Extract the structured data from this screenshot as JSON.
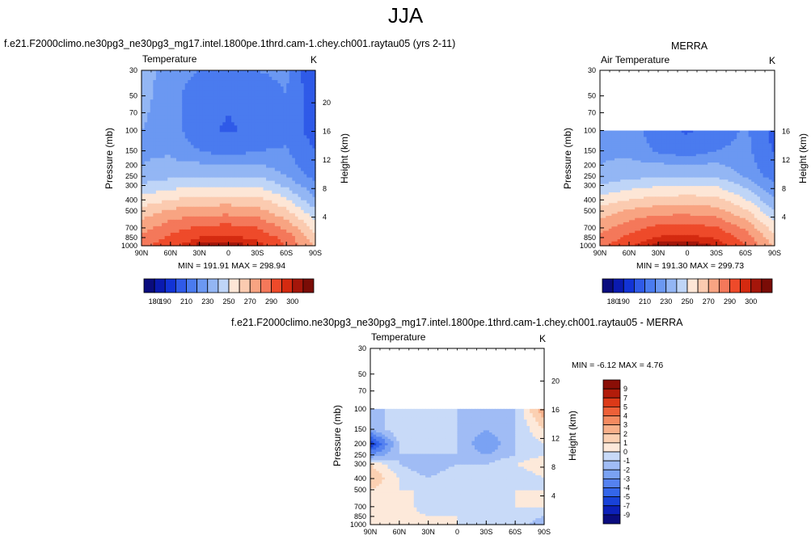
{
  "page": {
    "title": "JJA"
  },
  "colors": {
    "temp_palette": [
      "#0a0c7e",
      "#0a1ab0",
      "#1233d6",
      "#2f5ae8",
      "#4a7bef",
      "#6b98f2",
      "#93b6f4",
      "#bfd5f7",
      "#fde6d6",
      "#fbcbb0",
      "#f8a482",
      "#f4785a",
      "#ee4a2a",
      "#d42a10",
      "#a5160a",
      "#7a0c06"
    ],
    "diff_palette": [
      "#0a0c7e",
      "#0c20b8",
      "#1842d8",
      "#3466ea",
      "#5582f0",
      "#7aa2f3",
      "#a0bcf5",
      "#c8daf8",
      "#fde9da",
      "#fbd0b2",
      "#f8b08a",
      "#f48a60",
      "#ee6038",
      "#dc3a18",
      "#b21c0a",
      "#8a0e06"
    ]
  },
  "panels": [
    {
      "id": "model",
      "case_title": "f.e21.F2000climo.ne30pg3_ne30pg3_mg17.intel.1800pe.1thrd.cam-1.chey.ch001.raytau05 (yrs 2-11)",
      "left_label": "Temperature",
      "right_label": "K",
      "ylabel": "Pressure (mb)",
      "y2label": "Height (km)",
      "y_ticks": [
        "30",
        "50",
        "70",
        "100",
        "150",
        "200",
        "250",
        "300",
        "400",
        "500",
        "700",
        "850",
        "1000"
      ],
      "y2_ticks": [
        "20",
        "16",
        "12",
        "8",
        "4"
      ],
      "x_ticks": [
        "90N",
        "60N",
        "30N",
        "0",
        "30S",
        "60S",
        "90S"
      ],
      "minmax": "MIN = 191.91   MAX = 298.94"
    },
    {
      "id": "merra",
      "case_title": "MERRA",
      "left_label": "Air Temperature",
      "right_label": "K",
      "ylabel": "Pressure (mb)",
      "y2label": "Height (km)",
      "y_ticks": [
        "30",
        "50",
        "70",
        "100",
        "150",
        "200",
        "250",
        "300",
        "400",
        "500",
        "700",
        "850",
        "1000"
      ],
      "y2_ticks": [
        "16",
        "12",
        "8",
        "4"
      ],
      "x_ticks": [
        "90N",
        "60N",
        "30N",
        "0",
        "30S",
        "60S",
        "90S"
      ],
      "minmax": "MIN = 191.30   MAX = 299.73"
    },
    {
      "id": "diff",
      "case_title": "f.e21.F2000climo.ne30pg3_ne30pg3_mg17.intel.1800pe.1thrd.cam-1.chey.ch001.raytau05 - MERRA",
      "left_label": "Temperature",
      "right_label": "K",
      "ylabel": "Pressure (mb)",
      "y2label": "Height (km)",
      "y_ticks": [
        "30",
        "50",
        "70",
        "100",
        "150",
        "200",
        "250",
        "300",
        "400",
        "500",
        "700",
        "850",
        "1000"
      ],
      "y2_ticks": [
        "20",
        "16",
        "12",
        "8",
        "4"
      ],
      "x_ticks": [
        "90N",
        "60N",
        "30N",
        "0",
        "30S",
        "60S",
        "90S"
      ],
      "minmax": "MIN =  -6.12   MAX =   4.76"
    }
  ],
  "colorbars": {
    "temp_labels": [
      "180",
      "190",
      "210",
      "230",
      "250",
      "270",
      "290",
      "300"
    ],
    "diff_labels": [
      "9",
      "7",
      "5",
      "4",
      "3",
      "2",
      "1",
      "0",
      "-1",
      "-2",
      "-3",
      "-4",
      "-5",
      "-7",
      "-9"
    ]
  },
  "chart_data": [
    {
      "type": "heatmap",
      "title": "Temperature",
      "units": "K",
      "x": [
        "90N",
        "60N",
        "30N",
        "0",
        "30S",
        "60S",
        "90S"
      ],
      "y": [
        30,
        50,
        70,
        100,
        150,
        200,
        250,
        300,
        400,
        500,
        700,
        850,
        1000
      ],
      "ylabel": "Pressure (mb)",
      "y2label": "Height (km)",
      "min": 191.91,
      "max": 298.94,
      "values": [
        [
          226,
          214,
          210,
          208,
          210,
          212,
          190
        ],
        [
          224,
          213,
          205,
          202,
          205,
          210,
          192
        ],
        [
          222,
          214,
          203,
          200,
          203,
          209,
          194
        ],
        [
          220,
          215,
          202,
          199,
          202,
          207,
          195
        ],
        [
          219,
          219,
          210,
          205,
          210,
          211,
          200
        ],
        [
          220,
          222,
          222,
          220,
          222,
          214,
          203
        ],
        [
          224,
          228,
          230,
          229,
          230,
          220,
          206
        ],
        [
          232,
          236,
          239,
          239,
          239,
          228,
          212
        ],
        [
          244,
          250,
          254,
          255,
          254,
          242,
          222
        ],
        [
          254,
          262,
          266,
          266,
          264,
          252,
          232
        ],
        [
          266,
          276,
          282,
          284,
          280,
          268,
          246
        ],
        [
          272,
          282,
          290,
          292,
          288,
          276,
          254
        ],
        [
          276,
          288,
          297,
          298,
          294,
          280,
          258
        ]
      ]
    },
    {
      "type": "heatmap",
      "title": "Air Temperature",
      "units": "K",
      "x": [
        "90N",
        "60N",
        "30N",
        "0",
        "30S",
        "60S",
        "90S"
      ],
      "y": [
        100,
        150,
        200,
        250,
        300,
        400,
        500,
        700,
        850,
        1000
      ],
      "ylabel": "Pressure (mb)",
      "y2label": "Height (km)",
      "min": 191.3,
      "max": 299.73,
      "values": [
        [
          220,
          216,
          203,
          199,
          203,
          212,
          196
        ],
        [
          219,
          218,
          208,
          204,
          210,
          213,
          199
        ],
        [
          220,
          222,
          222,
          220,
          222,
          215,
          202
        ],
        [
          223,
          227,
          229,
          228,
          229,
          219,
          205
        ],
        [
          231,
          236,
          239,
          239,
          239,
          228,
          211
        ],
        [
          244,
          250,
          254,
          255,
          254,
          241,
          221
        ],
        [
          254,
          262,
          266,
          266,
          264,
          252,
          231
        ],
        [
          266,
          276,
          283,
          285,
          281,
          268,
          245
        ],
        [
          272,
          283,
          291,
          293,
          289,
          276,
          253
        ],
        [
          277,
          289,
          298,
          299,
          295,
          281,
          257
        ]
      ]
    },
    {
      "type": "heatmap",
      "title": "Temperature",
      "units": "K",
      "x": [
        "90N",
        "60N",
        "30N",
        "0",
        "30S",
        "60S",
        "90S"
      ],
      "y": [
        100,
        150,
        200,
        250,
        300,
        400,
        500,
        700,
        850,
        1000
      ],
      "ylabel": "Pressure (mb)",
      "y2label": "Height (km)",
      "min": -6.12,
      "max": 4.76,
      "values": [
        [
          -1,
          -1,
          0,
          -1,
          -2,
          -1,
          3
        ],
        [
          -2,
          0,
          -1,
          -1,
          -2,
          -1,
          1
        ],
        [
          -6,
          -1,
          -1,
          -1,
          -3,
          -1,
          0
        ],
        [
          -3,
          -1,
          -1,
          -1,
          -2,
          -1,
          0
        ],
        [
          1,
          -1,
          -2,
          -1,
          -1,
          0,
          1
        ],
        [
          2,
          0,
          -1,
          0,
          -1,
          -1,
          0
        ],
        [
          1,
          0,
          0,
          -1,
          -1,
          0,
          0
        ],
        [
          1,
          1,
          -1,
          -1,
          0,
          0,
          0
        ],
        [
          0,
          1,
          0,
          0,
          -1,
          0,
          -1
        ],
        [
          0,
          0,
          0,
          0,
          0,
          0,
          -2
        ]
      ]
    }
  ]
}
